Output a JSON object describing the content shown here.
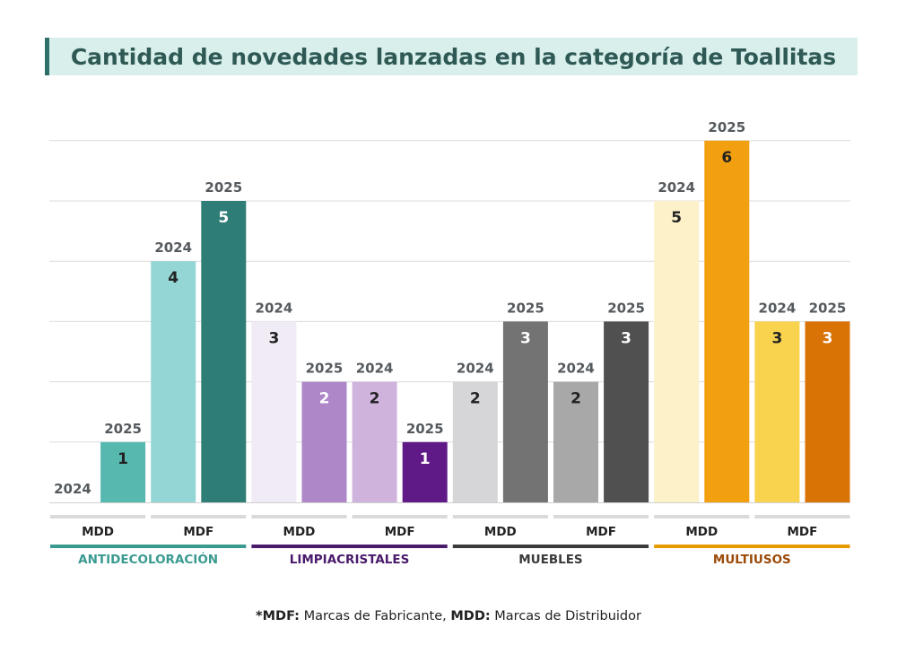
{
  "title": "Cantidad de novedades lanzadas en la categoría de Toallitas",
  "footnote": {
    "mdf_abbr": "*MDF:",
    "mdf_text": " Marcas de Fabricante, ",
    "mdd_abbr": "MDD:",
    "mdd_text": " Marcas de Distribuidor"
  },
  "chart_data": {
    "type": "bar",
    "title": "Cantidad de novedades lanzadas en la categoría de Toallitas",
    "ylim": [
      0,
      6
    ],
    "grid": true,
    "categories": [
      {
        "name": "ANTIDECOLORACIÓN",
        "color": "#3a9a90",
        "groups": [
          {
            "name": "MDD",
            "bars": [
              {
                "year": "2024",
                "value": 0,
                "color": "#ffffff",
                "label_color": "#222222"
              },
              {
                "year": "2025",
                "value": 1,
                "color": "#57b8b0",
                "label_color": "#222222"
              }
            ]
          },
          {
            "name": "MDF",
            "bars": [
              {
                "year": "2024",
                "value": 4,
                "color": "#94d6d5",
                "label_color": "#222222"
              },
              {
                "year": "2025",
                "value": 5,
                "color": "#2f7d77",
                "label_color": "#ffffff"
              }
            ]
          }
        ]
      },
      {
        "name": "LIMPIACRISTALES",
        "color": "#4a1a6b",
        "groups": [
          {
            "name": "MDD",
            "bars": [
              {
                "year": "2024",
                "value": 3,
                "color": "#f1ebf6",
                "label_color": "#222222"
              },
              {
                "year": "2025",
                "value": 2,
                "color": "#ad87c8",
                "label_color": "#ffffff"
              }
            ]
          },
          {
            "name": "MDF",
            "bars": [
              {
                "year": "2024",
                "value": 2,
                "color": "#cfb3dd",
                "label_color": "#222222"
              },
              {
                "year": "2025",
                "value": 1,
                "color": "#5f1a87",
                "label_color": "#ffffff"
              }
            ]
          }
        ]
      },
      {
        "name": "MUEBLES",
        "color": "#3a3a3a",
        "groups": [
          {
            "name": "MDD",
            "bars": [
              {
                "year": "2024",
                "value": 2,
                "color": "#d6d6d9",
                "label_color": "#222222"
              },
              {
                "year": "2025",
                "value": 3,
                "color": "#737373",
                "label_color": "#ffffff"
              }
            ]
          },
          {
            "name": "MDF",
            "bars": [
              {
                "year": "2024",
                "value": 2,
                "color": "#a8a8a8",
                "label_color": "#222222"
              },
              {
                "year": "2025",
                "value": 3,
                "color": "#505050",
                "label_color": "#ffffff"
              }
            ]
          }
        ]
      },
      {
        "name": "MULTIUSOS",
        "color": "#e69b00",
        "text_color": "#9b4a08",
        "groups": [
          {
            "name": "MDD",
            "bars": [
              {
                "year": "2024",
                "value": 5,
                "color": "#fdf1ca",
                "label_color": "#222222"
              },
              {
                "year": "2025",
                "value": 6,
                "color": "#f2a00f",
                "label_color": "#222222"
              }
            ]
          },
          {
            "name": "MDF",
            "bars": [
              {
                "year": "2024",
                "value": 3,
                "color": "#f9d34d",
                "label_color": "#222222"
              },
              {
                "year": "2025",
                "value": 3,
                "color": "#d97306",
                "label_color": "#ffffff"
              }
            ]
          }
        ]
      }
    ]
  }
}
